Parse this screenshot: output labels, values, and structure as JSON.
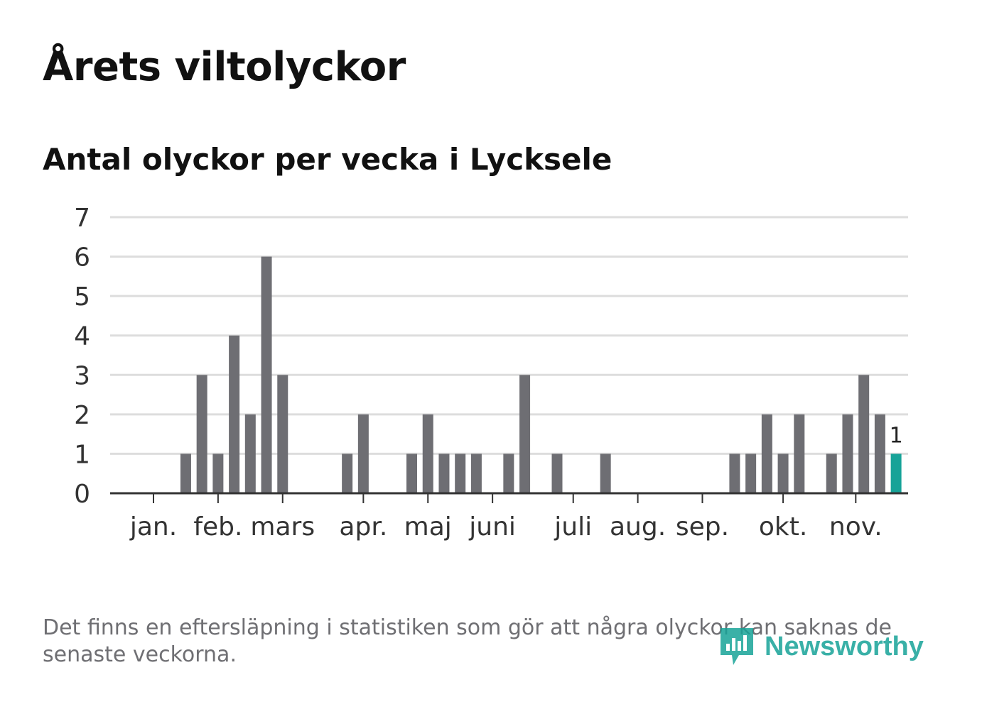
{
  "title": "Årets viltolyckor",
  "subtitle": "Antal olyckor per vecka i Lycksele",
  "footnote": "Det finns en eftersläpning i statistiken som gör att några olyckor kan saknas de senaste veckorna.",
  "logo_text": "Newsworthy",
  "colors": {
    "bar": "#6e6e73",
    "highlight": "#17a398",
    "grid": "#dddddd",
    "axis": "#333333"
  },
  "chart_data": {
    "type": "bar",
    "title": "Antal olyckor per vecka i Lycksele",
    "xlabel": "",
    "ylabel": "",
    "ylim": [
      0,
      7
    ],
    "yticks": [
      0,
      1,
      2,
      3,
      4,
      5,
      6,
      7
    ],
    "grid": true,
    "weeks": [
      1,
      2,
      3,
      4,
      5,
      6,
      7,
      8,
      9,
      10,
      11,
      12,
      13,
      14,
      15,
      16,
      17,
      18,
      19,
      20,
      21,
      22,
      23,
      24,
      25,
      26,
      27,
      28,
      29,
      30,
      31,
      32,
      33,
      34,
      35,
      36,
      37,
      38,
      39,
      40,
      41,
      42,
      43,
      44,
      45,
      46,
      47
    ],
    "values": [
      0,
      0,
      1,
      3,
      1,
      4,
      2,
      6,
      3,
      0,
      0,
      0,
      1,
      2,
      0,
      0,
      1,
      2,
      1,
      1,
      1,
      0,
      1,
      3,
      0,
      1,
      0,
      0,
      1,
      0,
      0,
      0,
      0,
      0,
      0,
      0,
      1,
      1,
      2,
      1,
      2,
      0,
      1,
      2,
      3,
      2,
      1
    ],
    "highlight_last": true,
    "highlight_label": "1",
    "month_labels": [
      {
        "label": "jan.",
        "week": 1.0
      },
      {
        "label": "feb.",
        "week": 5.0
      },
      {
        "label": "mars",
        "week": 9.0
      },
      {
        "label": "apr.",
        "week": 14.0
      },
      {
        "label": "maj",
        "week": 18.0
      },
      {
        "label": "juni",
        "week": 22.0
      },
      {
        "label": "juli",
        "week": 27.0
      },
      {
        "label": "aug.",
        "week": 31.0
      },
      {
        "label": "sep.",
        "week": 35.0
      },
      {
        "label": "okt.",
        "week": 40.0
      },
      {
        "label": "nov.",
        "week": 44.5
      }
    ]
  }
}
